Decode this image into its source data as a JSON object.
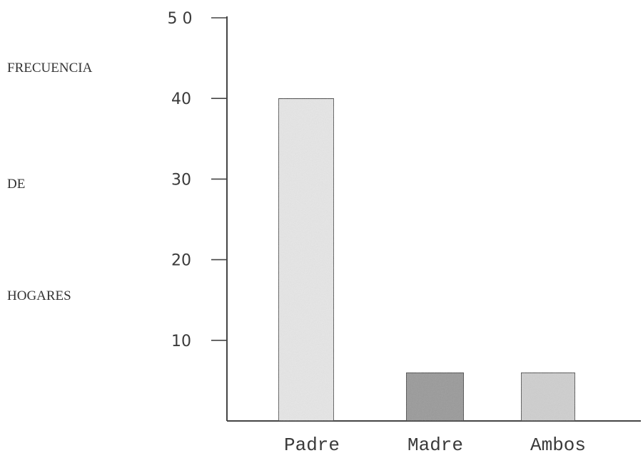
{
  "chart_data": {
    "type": "bar",
    "title": "",
    "xlabel": "",
    "ylabel_lines": [
      "FRECUENCIA",
      "DE",
      "HOGARES"
    ],
    "categories": [
      "Padre",
      "Madre",
      "Ambos"
    ],
    "values": [
      40,
      6,
      6
    ],
    "bar_colors": [
      "#e6e6e6",
      "#9a9a9a",
      "#cfcfcf"
    ],
    "yticks": [
      10,
      20,
      30,
      40,
      50
    ],
    "ytick_labels": [
      "10",
      "20",
      "30",
      "40",
      "5 0"
    ],
    "ylim": [
      0,
      50
    ],
    "grid": false,
    "legend": "none"
  }
}
